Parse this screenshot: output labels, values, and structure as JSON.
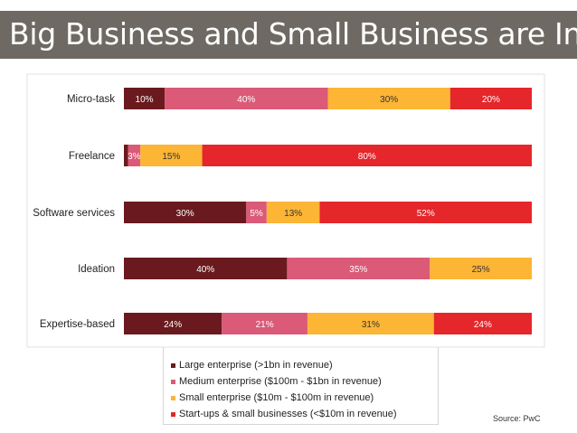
{
  "title": "Big Business and Small Business are In!",
  "source": "Source: PwC",
  "colors": {
    "title_bg": "#6e6a63",
    "large": "#6a1a1e",
    "medium": "#da5a77",
    "small": "#fcb535",
    "startups": "#e5262a"
  },
  "chart_data": {
    "type": "bar",
    "orientation": "horizontal",
    "stacked": true,
    "percent": true,
    "categories": [
      "Micro-task",
      "Freelance",
      "Software services",
      "Ideation",
      "Expertise-based"
    ],
    "series": [
      {
        "name": "Large enterprise (>1bn in revenue)",
        "values": [
          10,
          1,
          30,
          40,
          24
        ],
        "labels": [
          "10%",
          "",
          "30%",
          "40%",
          "24%"
        ]
      },
      {
        "name": "Medium enterprise ($100m - $1bn in revenue)",
        "values": [
          40,
          3,
          5,
          35,
          21
        ],
        "labels": [
          "40%",
          "3%",
          "5%",
          "35%",
          "21%"
        ]
      },
      {
        "name": "Small enterprise ($10m - $100m in revenue)",
        "values": [
          30,
          15,
          13,
          25,
          31
        ],
        "labels": [
          "30%",
          "15%",
          "13%",
          "25%",
          "31%"
        ]
      },
      {
        "name": "Start-ups & small businesses (<$10m in revenue)",
        "values": [
          20,
          80,
          52,
          0,
          24
        ],
        "labels": [
          "20%",
          "80%",
          "52%",
          "",
          "24%"
        ]
      }
    ],
    "xlim": [
      0,
      100
    ],
    "legend_position": "bottom"
  }
}
